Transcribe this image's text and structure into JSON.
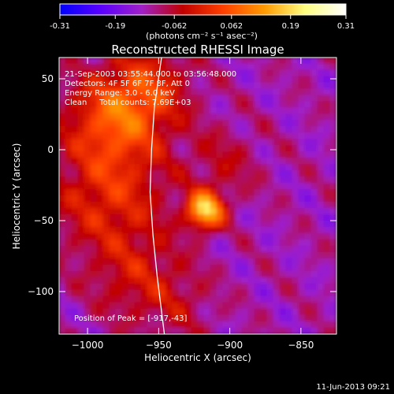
{
  "chart_data": {
    "type": "heatmap",
    "title": "Reconstructed RHESSI Image",
    "xlabel": "Heliocentric X (arcsec)",
    "ylabel": "Heliocentric Y (arcsec)",
    "xlim": [
      -1020,
      -825
    ],
    "ylim": [
      -130,
      65
    ],
    "x_ticks": [
      -1000,
      -950,
      -900,
      -850
    ],
    "y_ticks": [
      -100,
      -50,
      0,
      50
    ],
    "colorbar": {
      "range": [
        -0.31,
        0.31
      ],
      "ticks": [
        "-0.31",
        "-0.19",
        "-0.062",
        "0.062",
        "0.19",
        "0.31"
      ],
      "unit_label": "(photons cm⁻² s⁻¹ asec⁻²)",
      "colormap": [
        "#0000ff",
        "#5a00ff",
        "#a020c8",
        "#c00000",
        "#ff4000",
        "#ff9a00",
        "#ffff80",
        "#ffffff"
      ]
    },
    "annotations": [
      "21-Sep-2003 03:55:44.000 to 03:56:48.000",
      "Detectors: 4F 5F 6F 7F 8F, Att 0",
      "Energy Range: 3.0 - 6.0 keV",
      "Clean     Total counts: 7.69E+03"
    ],
    "peak_label": "Position of Peak = [-917,-43]",
    "peak": {
      "x": -917,
      "y": -43,
      "value": 0.31
    },
    "limb_curve": [
      [
        -948,
        65
      ],
      [
        -953,
        30
      ],
      [
        -955,
        0
      ],
      [
        -956,
        -30
      ],
      [
        -954,
        -60
      ],
      [
        -951,
        -90
      ],
      [
        -946,
        -130
      ]
    ],
    "sources": [
      {
        "x": -917,
        "y": -43,
        "sigma": 9,
        "amp": 0.3
      },
      {
        "x": -980,
        "y": 22,
        "sigma": 24,
        "amp": 0.17
      },
      {
        "x": -985,
        "y": -35,
        "sigma": 28,
        "amp": 0.12
      },
      {
        "x": -955,
        "y": 45,
        "sigma": 20,
        "amp": 0.1
      },
      {
        "x": -965,
        "y": -90,
        "sigma": 22,
        "amp": 0.08
      },
      {
        "x": -905,
        "y": -10,
        "sigma": 18,
        "amp": 0.06
      },
      {
        "x": -935,
        "y": -110,
        "sigma": 18,
        "amp": 0.05
      }
    ],
    "background": -0.12,
    "timestamp": "11-Jun-2013 09:21"
  }
}
